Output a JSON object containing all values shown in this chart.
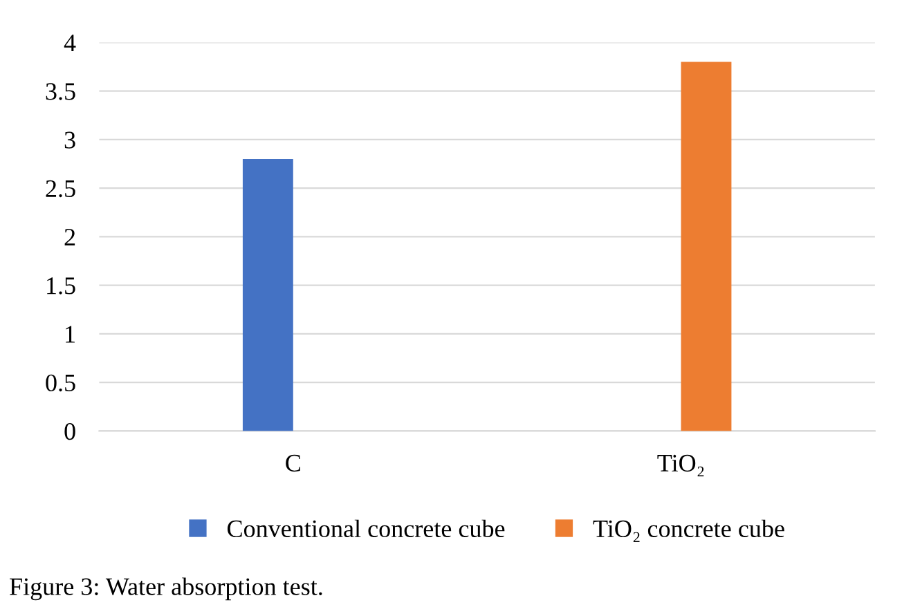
{
  "chart_data": {
    "type": "bar",
    "categories": [
      "C",
      "TiO₂"
    ],
    "series": [
      {
        "name": "Conventional concrete cube",
        "color": "#4472c4",
        "values": [
          2.8,
          null
        ]
      },
      {
        "name": "TiO₂ concrete cube",
        "color": "#ed7d31",
        "values": [
          null,
          3.8
        ]
      }
    ],
    "ylim": [
      0,
      4
    ],
    "yticks": [
      0,
      0.5,
      1,
      1.5,
      2,
      2.5,
      3,
      3.5,
      4
    ],
    "grid": "y",
    "legend": "bottom",
    "annotations": [
      "Figure 3: Water absorption test."
    ]
  }
}
